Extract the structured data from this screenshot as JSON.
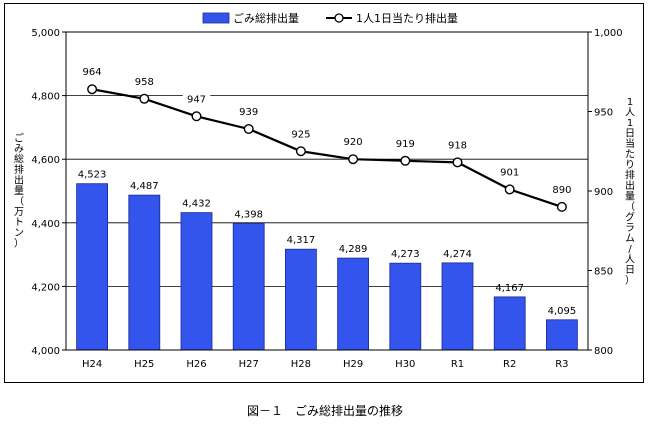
{
  "caption": "図－１　ごみ総排出量の推移",
  "chart_data": {
    "type": "bar+line",
    "categories": [
      "H24",
      "H25",
      "H26",
      "H27",
      "H28",
      "H29",
      "H30",
      "R1",
      "R2",
      "R3"
    ],
    "series": [
      {
        "name": "ごみ総排出量",
        "type": "bar",
        "axis": "left",
        "values": [
          4523,
          4487,
          4432,
          4398,
          4317,
          4289,
          4273,
          4274,
          4167,
          4095
        ],
        "labels": [
          "4,523",
          "4,487",
          "4,432",
          "4,398",
          "4,317",
          "4,289",
          "4,273",
          "4,274",
          "4,167",
          "4,095"
        ],
        "color": "#3355ee"
      },
      {
        "name": "1人1日当たり排出量",
        "type": "line",
        "axis": "right",
        "values": [
          964,
          958,
          947,
          939,
          925,
          920,
          919,
          918,
          901,
          890
        ],
        "labels": [
          "964",
          "958",
          "947",
          "939",
          "925",
          "920",
          "919",
          "918",
          "901",
          "890"
        ],
        "color": "#000000"
      }
    ],
    "ylabel_left": "ごみ総排出量（万トン）",
    "ylabel_right": "1人1日当たり排出量（グラム/人日）",
    "ylim_left": [
      4000,
      5000
    ],
    "ylim_right": [
      800,
      1000
    ],
    "yticks_left": [
      "4,000",
      "4,200",
      "4,400",
      "4,600",
      "4,800",
      "5,000"
    ],
    "yticks_right": [
      "800",
      "850",
      "900",
      "950",
      "1,000"
    ],
    "grid": true,
    "legend_position": "top"
  }
}
